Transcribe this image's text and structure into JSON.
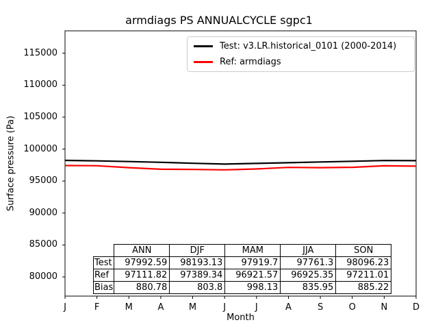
{
  "chart_data": {
    "type": "line",
    "title": "armdiags PS ANNUALCYCLE sgpc1",
    "xlabel": "Month",
    "ylabel": "Surface pressure (Pa)",
    "x_tick_labels": [
      "J",
      "F",
      "M",
      "A",
      "M",
      "J",
      "J",
      "A",
      "S",
      "O",
      "N",
      "D"
    ],
    "y_ticks": [
      80000,
      85000,
      90000,
      95000,
      100000,
      105000,
      110000,
      115000
    ],
    "ylim": [
      77000,
      118500
    ],
    "grid": false,
    "legend_position": "upper-right-inside",
    "series": [
      {
        "name": "Test: v3.LR.historical_0101 (2000-2014)",
        "color": "#000000",
        "values": [
          98230,
          98160,
          98050,
          97930,
          97780,
          97650,
          97760,
          97870,
          97990,
          98090,
          98210,
          98190
        ]
      },
      {
        "name": "Ref: armdiags",
        "color": "#ff0000",
        "values": [
          97430,
          97400,
          97100,
          96850,
          96815,
          96750,
          96890,
          97136,
          97100,
          97150,
          97383,
          97337
        ]
      }
    ]
  },
  "stats_table": {
    "col_headers": [
      "ANN",
      "DJF",
      "MAM",
      "JJA",
      "SON"
    ],
    "rows": [
      {
        "label": "Test",
        "values": [
          "97992.59",
          "98193.13",
          "97919.7",
          "97761.3",
          "98096.23"
        ]
      },
      {
        "label": "Ref",
        "values": [
          "97111.82",
          "97389.34",
          "96921.57",
          "96925.35",
          "97211.01"
        ]
      },
      {
        "label": "Bias",
        "values": [
          "880.78",
          "803.8",
          "998.13",
          "835.95",
          "885.22"
        ]
      }
    ]
  }
}
